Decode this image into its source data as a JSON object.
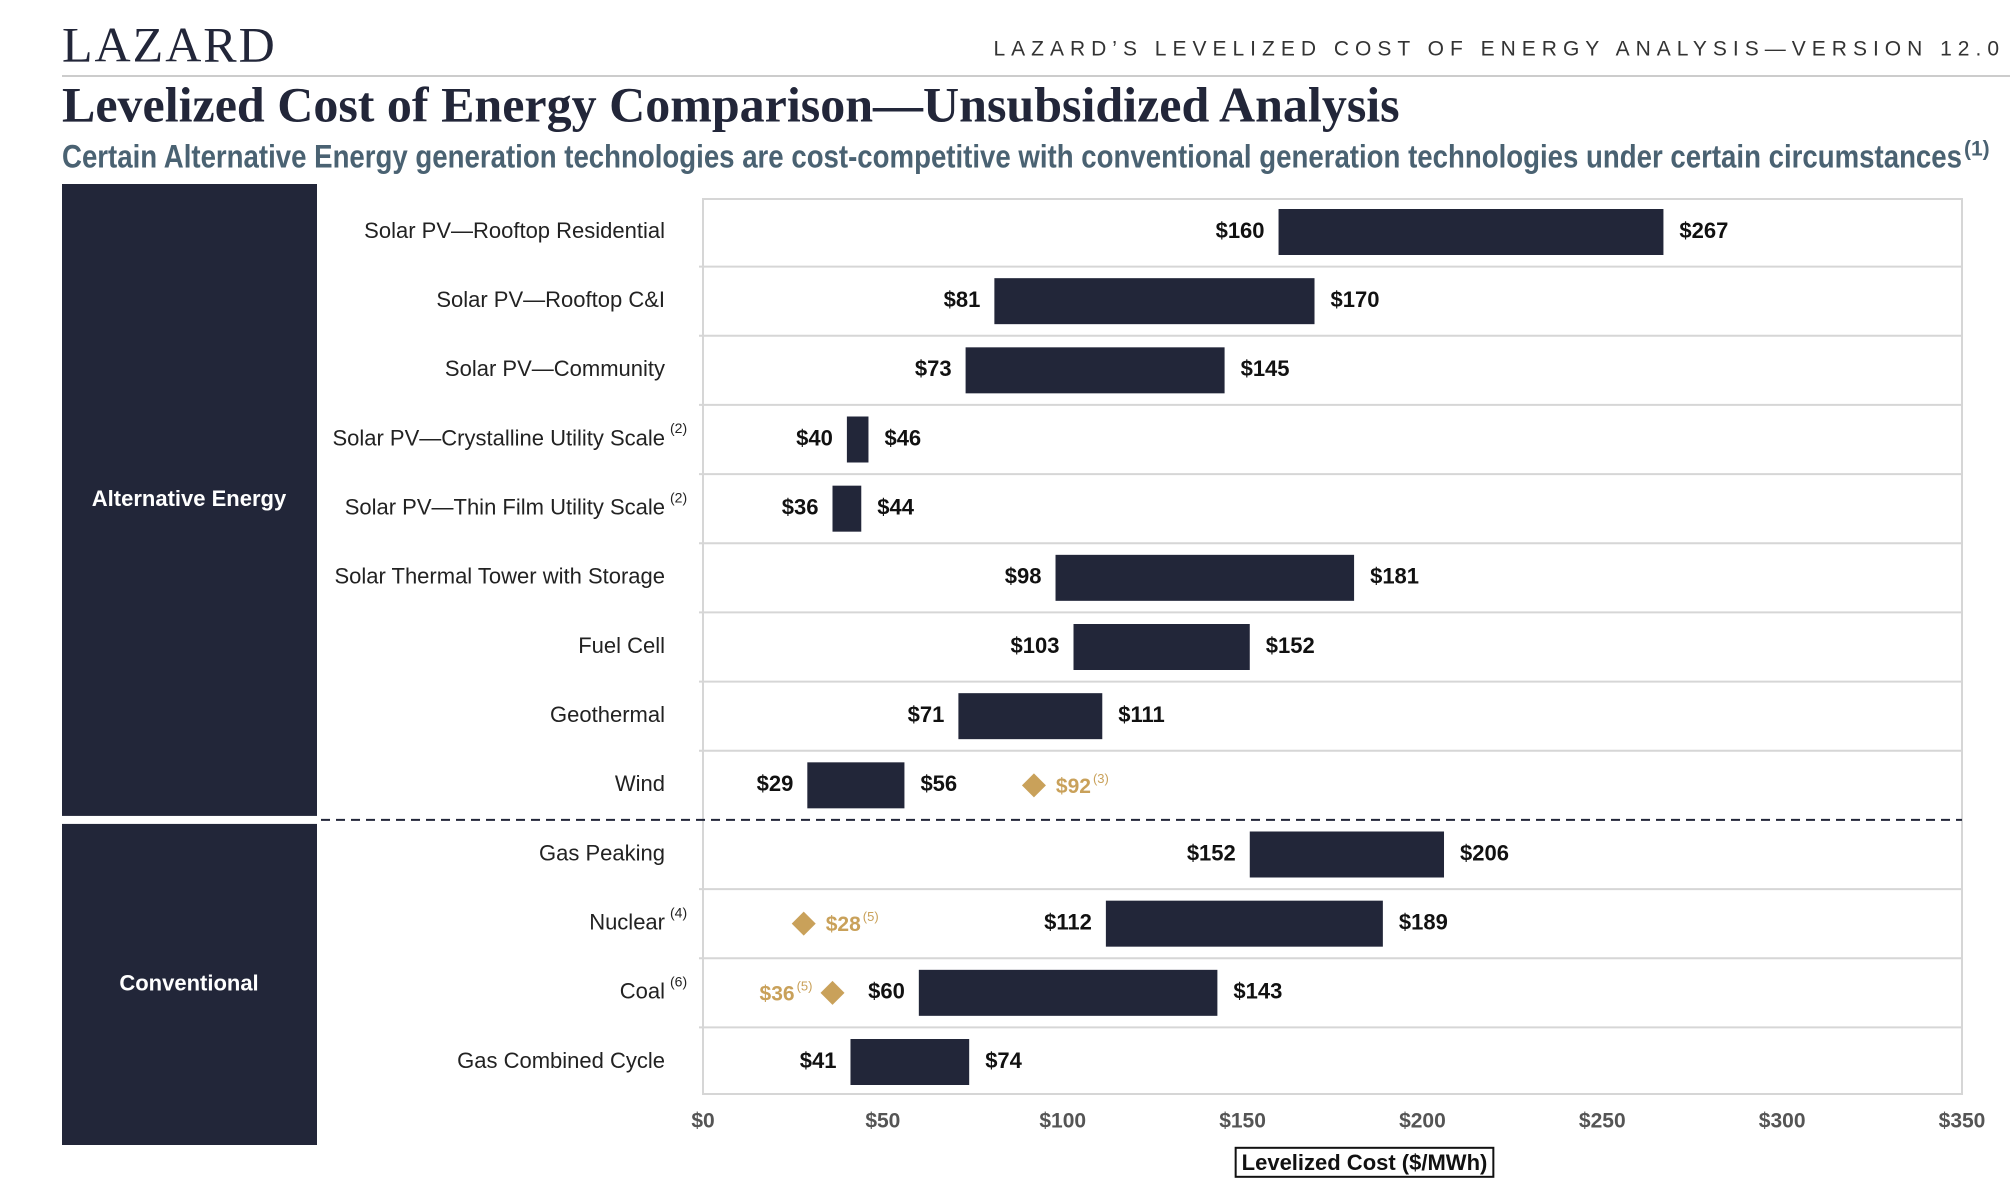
{
  "header": {
    "brand": "LAZARD",
    "report": "LAZARD’S LEVELIZED COST OF ENERGY ANALYSIS—VERSION 12.0"
  },
  "chart_data": {
    "type": "range_bar",
    "title": "Levelized Cost of Energy Comparison—Unsubsidized Analysis",
    "subtitle": "Certain Alternative Energy generation technologies are cost-competitive with conventional generation technologies under certain circumstances",
    "subtitle_note": "(1)",
    "x_label": "Levelized Cost ($/MWh)",
    "categories": [
      "Solar PV—Rooftop Residential",
      "Solar PV—Rooftop C&I",
      "Solar PV—Community",
      "Solar PV—Crystalline Utility Scale",
      "Solar PV—Thin Film Utility Scale",
      "Solar Thermal Tower with Storage",
      "Fuel Cell",
      "Geothermal",
      "Wind",
      "Gas Peaking",
      "Nuclear",
      "Coal",
      "Gas Combined Cycle"
    ],
    "category_notes": [
      null,
      null,
      null,
      "(2)",
      "(2)",
      null,
      null,
      null,
      null,
      null,
      "(4)",
      "(6)",
      null
    ],
    "category_groups": [
      "Alternative Energy",
      "Alternative Energy",
      "Alternative Energy",
      "Alternative Energy",
      "Alternative Energy",
      "Alternative Energy",
      "Alternative Energy",
      "Alternative Energy",
      "Alternative Energy",
      "Conventional",
      "Conventional",
      "Conventional",
      "Conventional"
    ],
    "low": [
      160,
      81,
      73,
      40,
      36,
      98,
      103,
      71,
      29,
      152,
      112,
      60,
      41
    ],
    "low_labels": [
      "$160",
      "$81",
      "$73",
      "$40",
      "$36",
      "$98",
      "$103",
      "$71",
      "$29",
      "$152",
      "$112",
      "$60",
      "$41"
    ],
    "high": [
      267,
      170,
      145,
      46,
      44,
      181,
      152,
      111,
      56,
      206,
      189,
      143,
      74
    ],
    "high_labels": [
      "$267",
      "$170",
      "$145",
      "$46",
      "$44",
      "$181",
      "$152",
      "$111",
      "$56",
      "$206",
      "$189",
      "$143",
      "$74"
    ],
    "color": "#222639",
    "marker_values": [
      null,
      null,
      null,
      null,
      null,
      null,
      null,
      null,
      92,
      null,
      28,
      36,
      null
    ],
    "marker_labels": [
      null,
      null,
      null,
      null,
      null,
      null,
      null,
      null,
      "$92",
      null,
      "$28",
      "$36",
      null
    ],
    "marker_notes": [
      null,
      null,
      null,
      null,
      null,
      null,
      null,
      null,
      "(3)",
      null,
      "(5)",
      "(5)",
      null
    ],
    "marker_color": "#c9a15a",
    "xlim": [
      0,
      350
    ],
    "xticks": [
      {
        "value": 0,
        "label": "$0"
      },
      {
        "value": 50,
        "label": "$50"
      },
      {
        "value": 100,
        "label": "$100"
      },
      {
        "value": 150,
        "label": "$150"
      },
      {
        "value": 200,
        "label": "$200"
      },
      {
        "value": 250,
        "label": "$250"
      },
      {
        "value": 300,
        "label": "$300"
      },
      {
        "value": 350,
        "label": "$350"
      }
    ]
  }
}
